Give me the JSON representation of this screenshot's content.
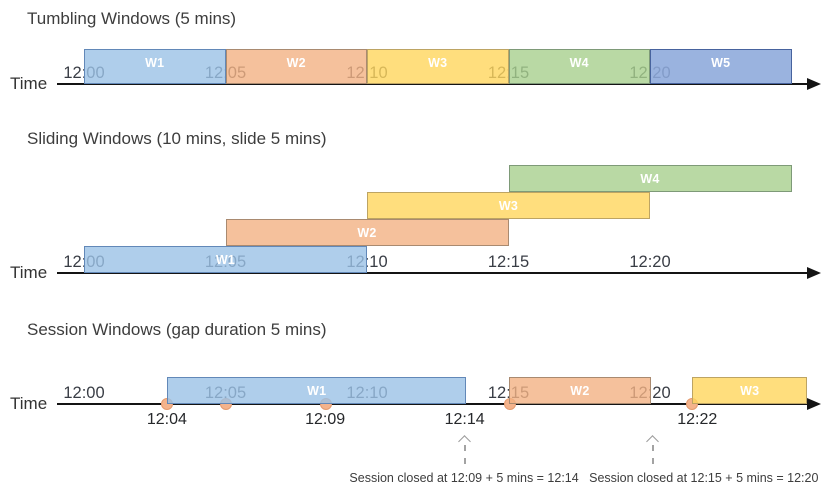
{
  "diagram": {
    "palette": {
      "blue": {
        "fill": "rgba(155,194,230,0.80)",
        "border": "#6288b8"
      },
      "orange": {
        "fill": "rgba(243,177,131,0.80)",
        "border": "#a98a70"
      },
      "yellow": {
        "fill": "rgba(255,214,92,0.80)",
        "border": "#bda463"
      },
      "green": {
        "fill": "rgba(167,208,141,0.80)",
        "border": "#7e9a78"
      },
      "periwinkle": {
        "fill": "rgba(140,168,219,0.88)",
        "border": "#47639e"
      }
    },
    "event_dot": {
      "fill": "#f4b38c",
      "border": "#e59a6d"
    },
    "sections": [
      {
        "id": "tumbling",
        "title": "Tumbling Windows (5 mins)",
        "time_axis_label": "Time",
        "ticks": [
          {
            "label": "12:00",
            "min": 0
          },
          {
            "label": "12:05",
            "min": 5
          },
          {
            "label": "12:10",
            "min": 10
          },
          {
            "label": "12:15",
            "min": 15
          },
          {
            "label": "12:20",
            "min": 20
          }
        ],
        "windows": [
          {
            "label": "W1",
            "start_min": 0,
            "end_min": 5,
            "color": "blue",
            "row": 0
          },
          {
            "label": "W2",
            "start_min": 5,
            "end_min": 10,
            "color": "orange",
            "row": 0
          },
          {
            "label": "W3",
            "start_min": 10,
            "end_min": 15,
            "color": "yellow",
            "row": 0
          },
          {
            "label": "W4",
            "start_min": 15,
            "end_min": 20,
            "color": "green",
            "row": 0
          },
          {
            "label": "W5",
            "start_min": 20,
            "end_min": 25,
            "color": "periwinkle",
            "row": 0
          }
        ]
      },
      {
        "id": "sliding",
        "title": "Sliding Windows (10 mins, slide 5 mins)",
        "time_axis_label": "Time",
        "ticks": [
          {
            "label": "12:00",
            "min": 0
          },
          {
            "label": "12:05",
            "min": 5
          },
          {
            "label": "12:10",
            "min": 10
          },
          {
            "label": "12:15",
            "min": 15
          },
          {
            "label": "12:20",
            "min": 20
          }
        ],
        "windows": [
          {
            "label": "W1",
            "start_min": 0,
            "end_min": 10,
            "color": "blue",
            "row": 0
          },
          {
            "label": "W2",
            "start_min": 5,
            "end_min": 15,
            "color": "orange",
            "row": 1
          },
          {
            "label": "W3",
            "start_min": 10,
            "end_min": 20,
            "color": "yellow",
            "row": 2
          },
          {
            "label": "W4",
            "start_min": 15,
            "end_min": 25,
            "color": "green",
            "row": 3
          }
        ]
      },
      {
        "id": "session",
        "title": "Session Windows (gap duration 5 mins)",
        "time_axis_label": "Time",
        "ticks": [
          {
            "label": "12:00",
            "min": 0
          },
          {
            "label": "12:05",
            "min": 5
          },
          {
            "label": "12:10",
            "min": 10
          },
          {
            "label": "12:15",
            "min": 15
          },
          {
            "label": "12:20",
            "min": 20
          }
        ],
        "windows": [
          {
            "label": "W1",
            "start_min": 2.95,
            "end_min": 13.5,
            "color": "blue"
          },
          {
            "label": "W2",
            "start_min": 15.0,
            "end_min": 20.05,
            "color": "orange"
          },
          {
            "label": "W3",
            "start_min": 21.5,
            "end_min": 25.55,
            "color": "yellow"
          }
        ],
        "events": [
          {
            "min": 2.95
          },
          {
            "min": 5.0
          },
          {
            "min": 8.55
          },
          {
            "min": 15.05
          },
          {
            "min": 21.5
          }
        ],
        "event_labels": [
          {
            "label": "12:04",
            "min": 2.93
          },
          {
            "label": "12:09",
            "min": 8.52
          },
          {
            "label": "12:14",
            "min": 13.45
          },
          {
            "label": "12:22",
            "min": 21.67
          }
        ],
        "annotations": [
          {
            "text": "Session closed at 12:09 + 5 mins = 12:14",
            "arrow_min": 13.45,
            "text_center_min": 13.43
          },
          {
            "text": "Session closed at 12:15 + 5 mins = 12:20",
            "arrow_min": 20.1,
            "text_center_min": 21.9
          }
        ]
      }
    ]
  }
}
